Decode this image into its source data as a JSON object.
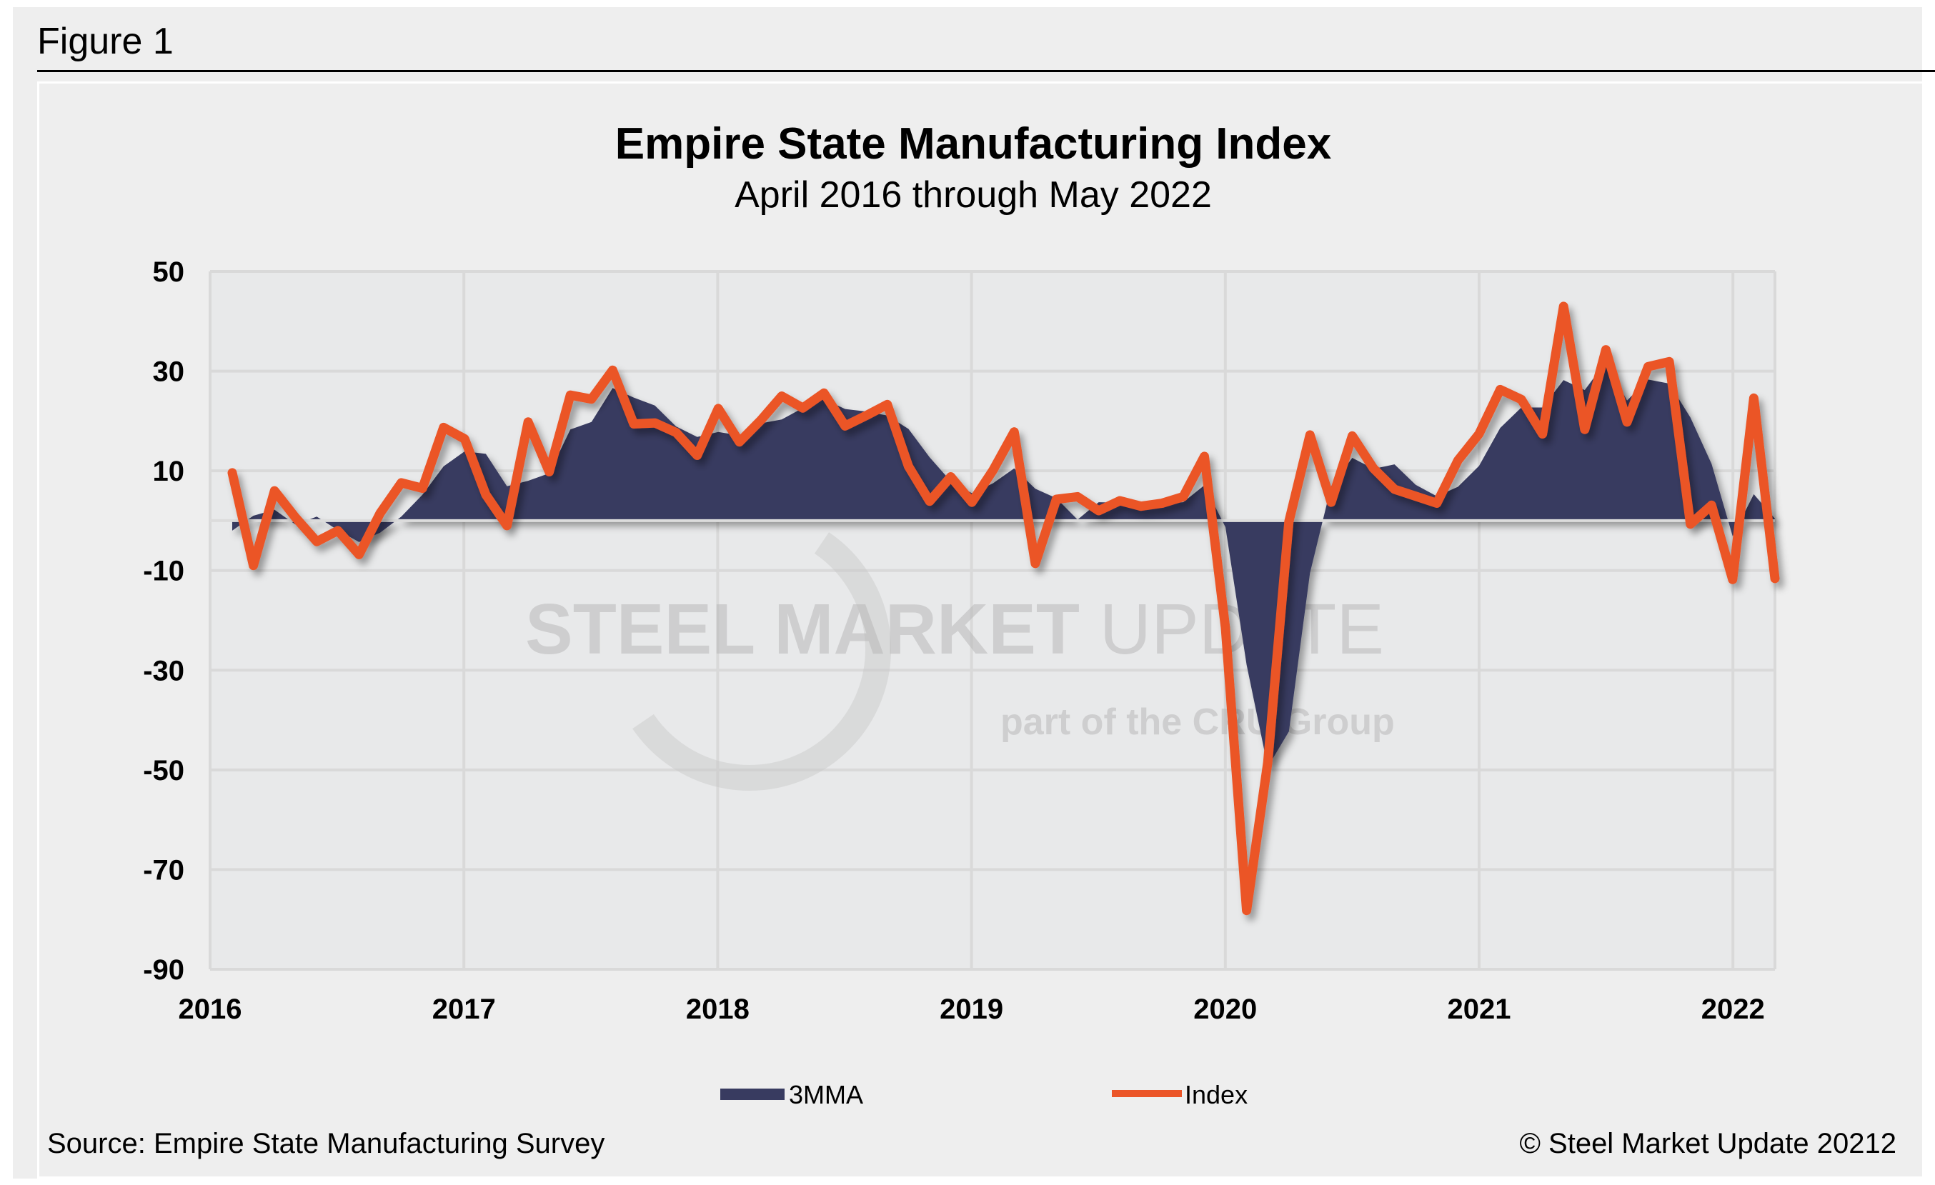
{
  "figure_label": "Figure 1",
  "watermark": {
    "line1_bold": "STEEL MARKET",
    "line1_light": "UPDATE",
    "line2_pre": "part of the",
    "line2_logo": "CRU",
    "line2_post": "Group"
  },
  "footer": {
    "source": "Source: Empire State Manufacturing Survey",
    "copyright": "© Steel Market Update 20212"
  },
  "colors": {
    "index": "#EB5528",
    "mma": "#383B60",
    "grid": "#d9d9d9",
    "plot_bg": "#e8e9ea"
  },
  "chart_data": {
    "type": "area+line",
    "title": "Empire State Manufacturing Index",
    "subtitle": "April 2016 through May 2022",
    "xlabel": "",
    "ylabel": "",
    "ylim": [
      -90,
      50
    ],
    "yticks": [
      "50",
      "30",
      "10",
      "-10",
      "-30",
      "-50",
      "-70",
      "-90"
    ],
    "xticks": [
      "2016",
      "2017",
      "2018",
      "2019",
      "2020",
      "2021",
      "2022"
    ],
    "grid": true,
    "legend": "bottom",
    "start": "2016-04",
    "frequency": "monthly",
    "series": [
      {
        "name": "3MMA",
        "type": "area",
        "values": [
          -2,
          1,
          2.2,
          -0.8,
          0.8,
          -1.9,
          -4.3,
          -2.4,
          0.8,
          5.2,
          10.9,
          13.9,
          13.4,
          6.9,
          8.0,
          9.5,
          18.3,
          19.8,
          26.6,
          24.7,
          23.1,
          18.9,
          16.8,
          17.8,
          17.1,
          19.5,
          20.3,
          22.6,
          24.4,
          22.4,
          21.9,
          21.1,
          18.4,
          12.7,
          7.9,
          5.5,
          7.5,
          10.5,
          6.4,
          4.5,
          0.2,
          3.7,
          3.6,
          3.0,
          3.5,
          3.7,
          7.1,
          -1.3,
          -28.9,
          -49.4,
          -42.3,
          -10.5,
          6.9,
          12.6,
          10.4,
          11.3,
          7.2,
          4.9,
          6.8,
          11.0,
          18.6,
          22.7,
          22.7,
          28.2,
          26.2,
          31.9,
          24.1,
          28.3,
          27.5,
          20.7,
          11.4,
          -3.1,
          5.3,
          0.4
        ]
      },
      {
        "name": "Index",
        "type": "line",
        "values": [
          9.6,
          -9.0,
          6.0,
          0.6,
          -4.2,
          -2.0,
          -6.8,
          1.5,
          7.6,
          6.5,
          18.7,
          16.4,
          5.2,
          -1.0,
          19.8,
          9.8,
          25.2,
          24.4,
          30.2,
          19.4,
          19.6,
          17.7,
          13.1,
          22.5,
          15.8,
          20.1,
          25.0,
          22.6,
          25.6,
          19.0,
          21.1,
          23.3,
          10.9,
          3.9,
          8.8,
          3.7,
          10.1,
          17.8,
          -8.6,
          4.3,
          4.8,
          2.0,
          4.0,
          2.9,
          3.5,
          4.8,
          12.9,
          -21.5,
          -78.2,
          -48.5,
          -0.2,
          17.2,
          3.7,
          17.0,
          10.5,
          6.3,
          4.9,
          3.5,
          12.1,
          17.4,
          26.3,
          24.3,
          17.4,
          43.0,
          18.3,
          34.3,
          19.8,
          30.9,
          31.9,
          -0.7,
          3.1,
          -11.8,
          24.6,
          -11.6
        ]
      }
    ]
  }
}
